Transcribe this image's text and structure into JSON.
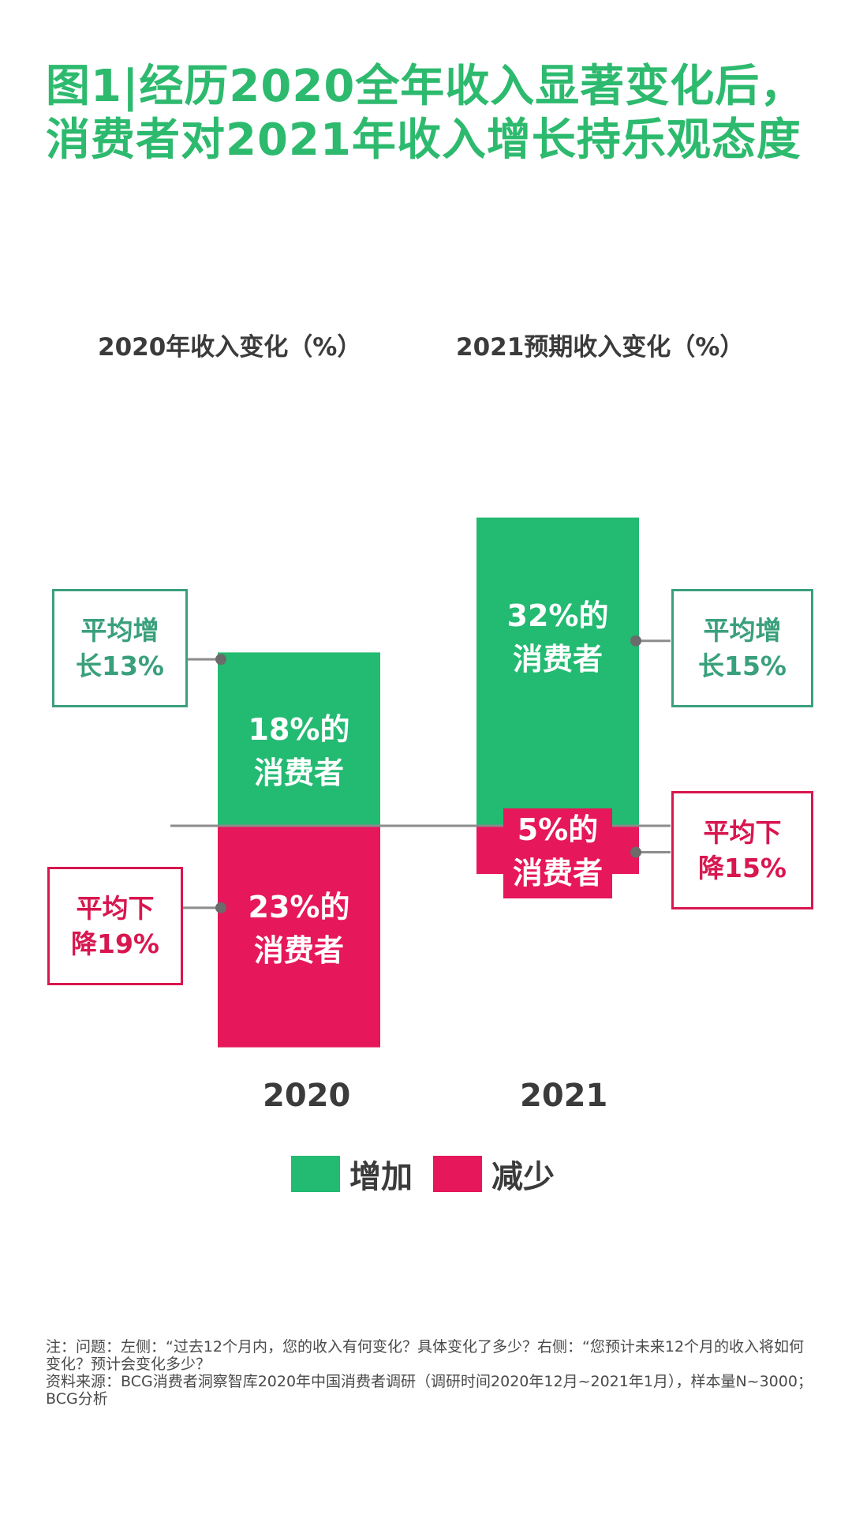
{
  "title_line1": "图1|经历2020全年收入显著变化后，",
  "title_line2": "消费者对2021年收入增长持乐观态度",
  "colors": {
    "increase": "#23ba72",
    "decrease": "#e6175a",
    "title": "#2dba6e",
    "axis": "#8c8c8c"
  },
  "chart_data": {
    "type": "bar",
    "stacked": "diverging",
    "categories": [
      "2020",
      "2021"
    ],
    "panel_titles": [
      "2020年收入变化（%）",
      "2021预期收入变化（%）"
    ],
    "series": [
      {
        "name": "增加",
        "values": [
          18,
          32
        ]
      },
      {
        "name": "减少",
        "values": [
          23,
          5
        ]
      }
    ],
    "bar_labels": {
      "increase": [
        "18%的\n消费者",
        "32%的\n消费者"
      ],
      "decrease": [
        "23%的\n消费者",
        "5%的\n消费者"
      ]
    },
    "callouts": {
      "increase": [
        "平均增\n长13%",
        "平均增\n长15%"
      ],
      "decrease": [
        "平均下\n降19%",
        "平均下\n降15%"
      ]
    },
    "legend": {
      "position": "bottom",
      "items": [
        "增加",
        "减少"
      ]
    }
  },
  "footnote": {
    "line1": "注：问题：左侧：“过去12个月内，您的收入有何变化？具体变化了多少？右侧：“您预计未来12个月的收入将如何变化？预计会变化多少？",
    "line2": "资料来源：BCG消费者洞察智库2020年中国消费者调研（调研时间2020年12月~2021年1月），样本量N~3000；BCG分析"
  }
}
